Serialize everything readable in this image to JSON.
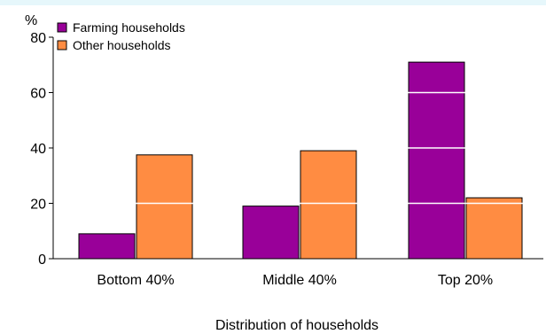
{
  "chart_data": {
    "type": "bar",
    "categories": [
      "Bottom 40%",
      "Middle 40%",
      "Top 20%"
    ],
    "series": [
      {
        "name": "Farming households",
        "color": "#990099",
        "values": [
          9,
          19,
          71
        ]
      },
      {
        "name": "Other households",
        "color": "#ff8c42",
        "values": [
          37.5,
          39,
          22
        ]
      }
    ],
    "ylim": [
      0,
      80
    ],
    "yticks": [
      0,
      20,
      40,
      60,
      80
    ],
    "ylabel": "%",
    "xlabel": "Distribution of households",
    "legend_position": "top-left",
    "gridlines": "white lines over bars"
  }
}
